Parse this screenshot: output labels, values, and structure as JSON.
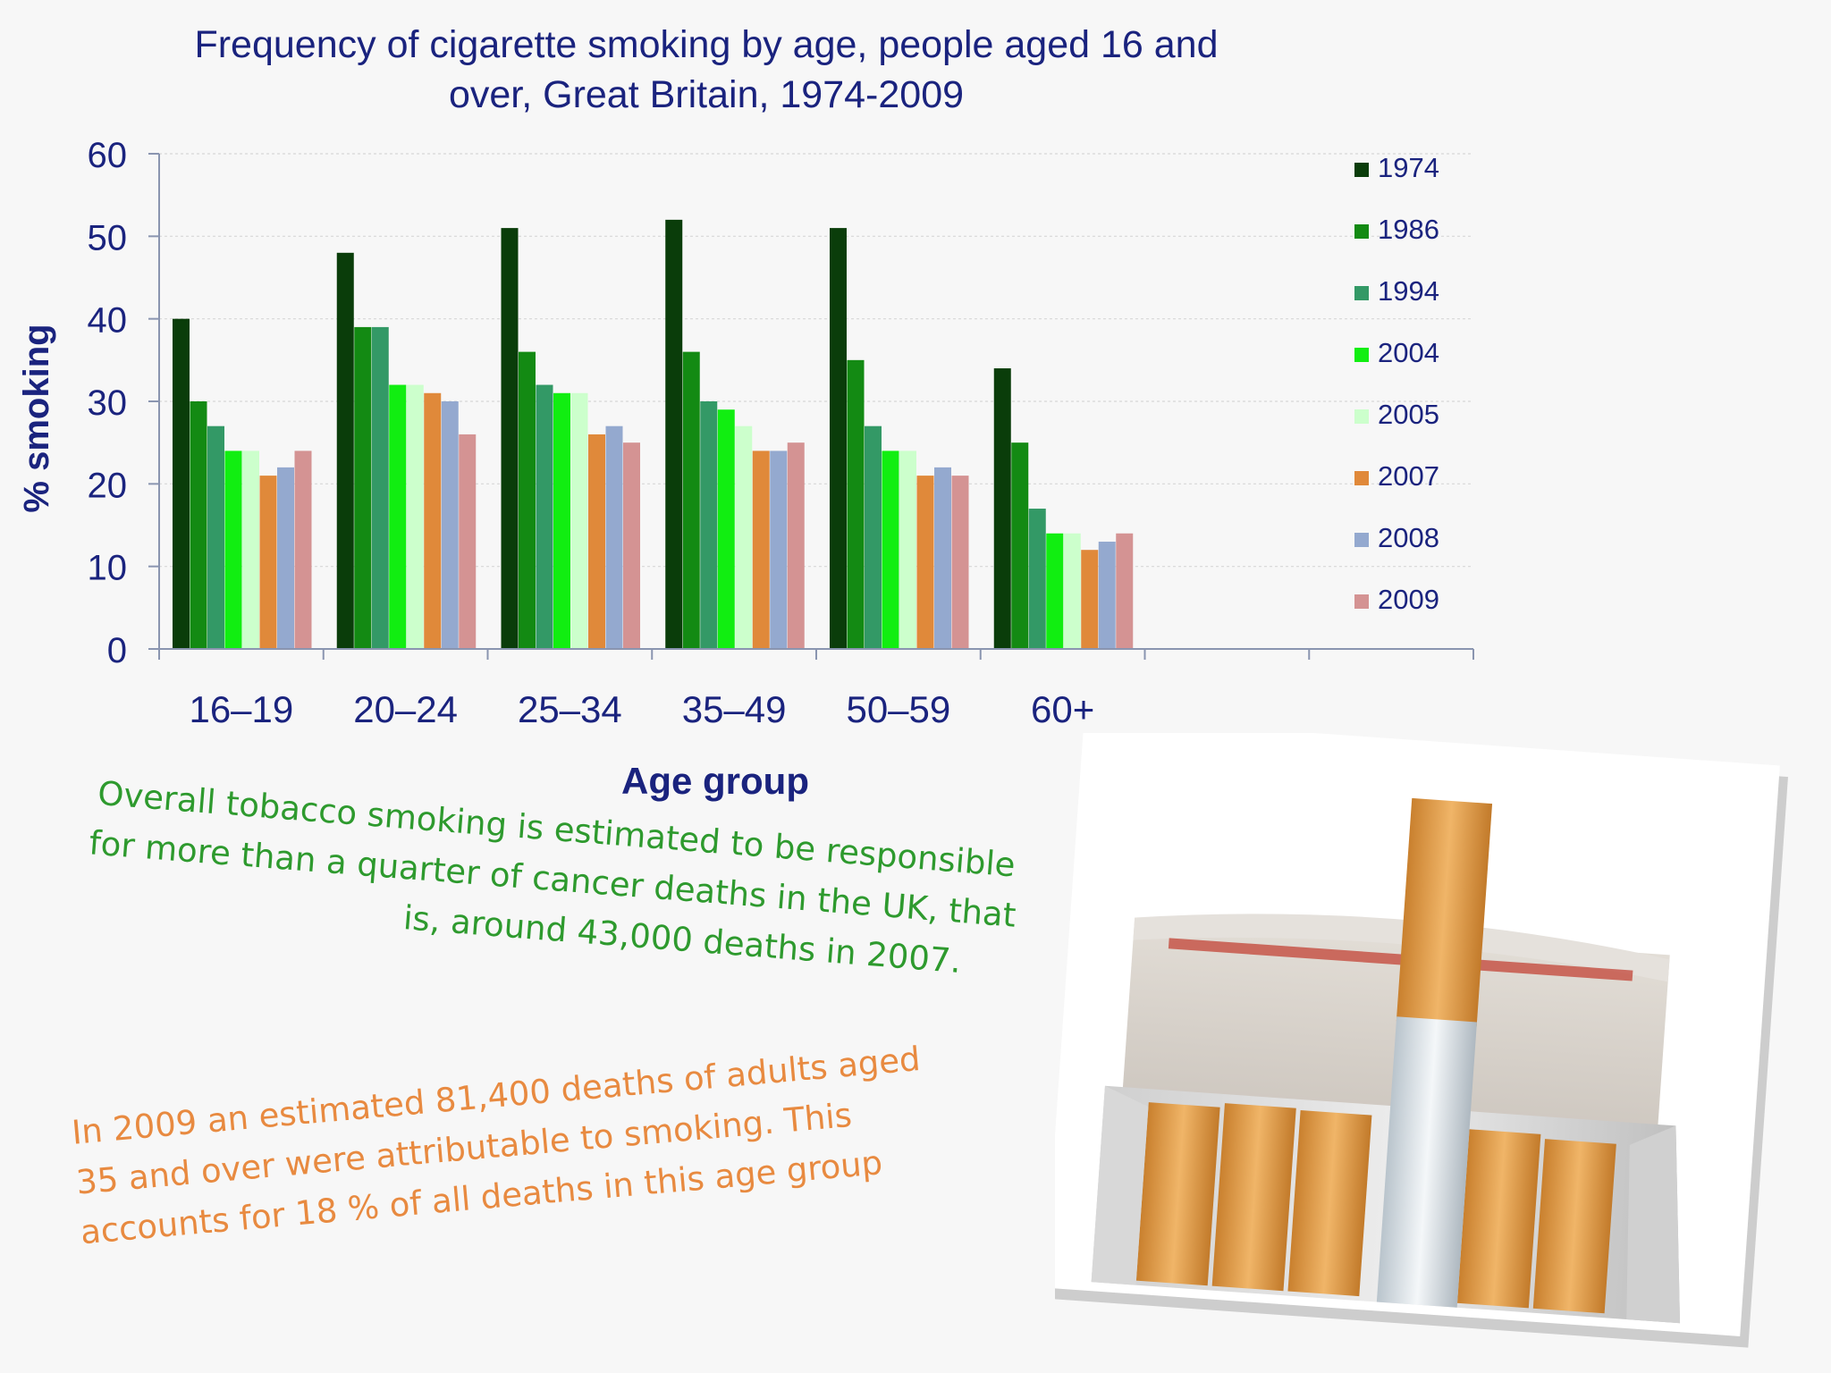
{
  "title_line1": "Frequency of cigarette smoking by age, people aged 16 and",
  "title_line2": "over, Great Britain, 1974-2009",
  "colors": {
    "title": "#1a237e",
    "green_caption": "#2e9a2e",
    "orange_caption": "#e88a40"
  },
  "chart_data": {
    "type": "bar",
    "title": "Frequency of cigarette smoking by age, people aged 16 and over, Great Britain, 1974-2009",
    "xlabel": "Age group",
    "ylabel": "% smoking",
    "ylim": [
      0,
      60
    ],
    "yticks": [
      "0",
      "10",
      "20",
      "30",
      "40",
      "50",
      "60"
    ],
    "grid": true,
    "legend_position": "right",
    "categories": [
      "16–19",
      "20–24",
      "25–34",
      "35–49",
      "50–59",
      "60+"
    ],
    "empty_categories": 2,
    "series": [
      {
        "name": "1974",
        "color": "#0a3d0a",
        "values": [
          40,
          48,
          51,
          52,
          51,
          34
        ]
      },
      {
        "name": "1986",
        "color": "#138a13",
        "values": [
          30,
          39,
          36,
          36,
          35,
          25
        ]
      },
      {
        "name": "1994",
        "color": "#339966",
        "values": [
          27,
          39,
          32,
          30,
          27,
          17
        ]
      },
      {
        "name": "2004",
        "color": "#11ee11",
        "values": [
          24,
          32,
          31,
          29,
          24,
          14
        ]
      },
      {
        "name": "2005",
        "color": "#ccffcc",
        "values": [
          24,
          32,
          31,
          27,
          24,
          14
        ]
      },
      {
        "name": "2007",
        "color": "#e0893a",
        "values": [
          21,
          31,
          26,
          24,
          21,
          12
        ]
      },
      {
        "name": "2008",
        "color": "#94a9cf",
        "values": [
          22,
          30,
          27,
          24,
          22,
          13
        ]
      },
      {
        "name": "2009",
        "color": "#d49393",
        "values": [
          24,
          26,
          25,
          25,
          21,
          14
        ]
      }
    ]
  },
  "captions": {
    "green": [
      "Overall tobacco smoking is estimated to be responsible",
      "for more than a quarter of cancer deaths in the UK, that",
      "is, around 43,000 deaths in 2007."
    ],
    "orange": [
      "In 2009 an estimated 81,400 deaths of adults aged",
      "35 and over were attributable to smoking. This",
      "accounts for 18 % of all deaths in this age group"
    ]
  },
  "photo": {
    "subject": "open cigarette pack with one cigarette raised"
  }
}
